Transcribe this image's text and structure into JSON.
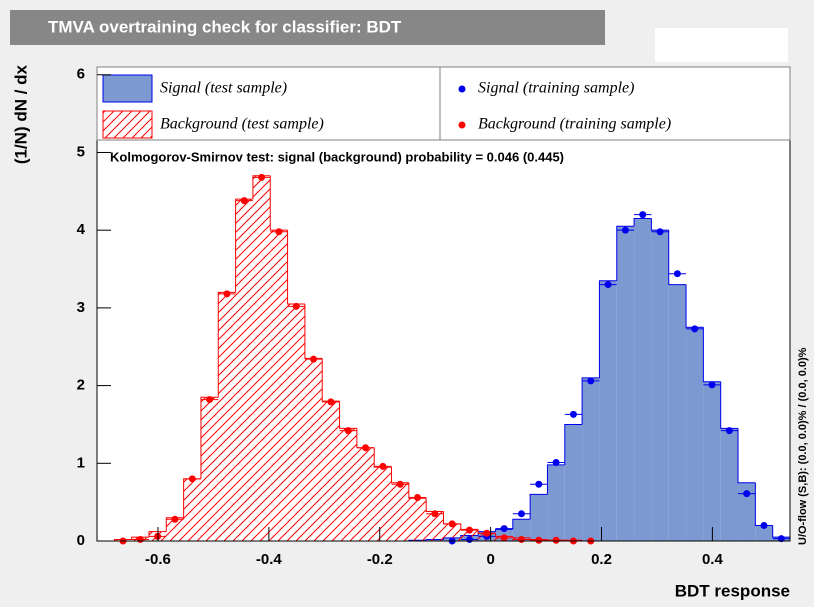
{
  "chart_data": {
    "type": "histogram",
    "title": "TMVA overtraining check for classifier: BDT",
    "xlabel": "BDT response",
    "ylabel": "(1/N) dN / dx",
    "annotation": "Kolmogorov-Smirnov test: signal (background) probability = 0.046 (0.445)",
    "side_note": "U/O-flow (S,B): (0.0, 0.0)% / (0.0, 0.0)%",
    "bins": [
      -0.71,
      -0.67875,
      -0.6475,
      -0.61625,
      -0.585,
      -0.55375,
      -0.5225,
      -0.49125,
      -0.46,
      -0.42875,
      -0.3975,
      -0.36625,
      -0.335,
      -0.30375,
      -0.2725,
      -0.24125,
      -0.21,
      -0.17875,
      -0.1475,
      -0.11625,
      -0.085,
      -0.05375,
      -0.0225,
      0.00875,
      0.04,
      0.07125,
      0.1025,
      0.13375,
      0.165,
      0.19625,
      0.2275,
      0.25875,
      0.29,
      0.32125,
      0.3525,
      0.38375,
      0.415,
      0.44625,
      0.4775,
      0.50875,
      0.54
    ],
    "xlim": [
      -0.71,
      0.54
    ],
    "ylim": [
      0,
      6.1
    ],
    "xticks": [
      -0.6,
      -0.4,
      -0.2,
      0,
      0.2,
      0.4
    ],
    "yticks": [
      0,
      1,
      2,
      3,
      4,
      5,
      6
    ],
    "grid": false,
    "series": [
      {
        "name": "Signal (test sample)",
        "color": "#0000ee",
        "fill": "#7d99d1",
        "style": "filled",
        "values": [
          0,
          0,
          0,
          0,
          0,
          0,
          0,
          0,
          0,
          0,
          0,
          0,
          0,
          0,
          0,
          0,
          0,
          0,
          0.01,
          0.02,
          0.04,
          0.07,
          0.12,
          0.15,
          0.28,
          0.6,
          0.98,
          1.5,
          2.1,
          3.35,
          4.05,
          4.15,
          4.0,
          3.3,
          2.75,
          2.05,
          1.45,
          0.75,
          0.2,
          0.05
        ]
      },
      {
        "name": "Background (test sample)",
        "color": "#ff0000",
        "style": "hatched",
        "values": [
          0,
          0.02,
          0.05,
          0.12,
          0.3,
          0.8,
          1.85,
          3.2,
          4.4,
          4.7,
          4.0,
          3.05,
          2.35,
          1.8,
          1.45,
          1.2,
          0.95,
          0.75,
          0.55,
          0.38,
          0.22,
          0.15,
          0.1,
          0.06,
          0.04,
          0.02,
          0.01,
          0.01,
          0,
          0,
          0,
          0,
          0,
          0,
          0,
          0,
          0,
          0,
          0,
          0
        ]
      },
      {
        "name": "Signal (training sample)",
        "color": "#0000ee",
        "style": "points",
        "values": [
          null,
          null,
          null,
          null,
          null,
          null,
          null,
          null,
          null,
          null,
          null,
          null,
          null,
          null,
          null,
          null,
          null,
          null,
          null,
          null,
          0,
          0.02,
          0.06,
          0.16,
          0.35,
          0.73,
          1.01,
          1.63,
          2.06,
          3.3,
          4.0,
          4.2,
          3.98,
          3.44,
          2.73,
          2.01,
          1.42,
          0.61,
          0.2,
          0.03
        ]
      },
      {
        "name": "Background (training sample)",
        "color": "#ff0000",
        "style": "points",
        "values": [
          null,
          0,
          0.02,
          0.06,
          0.28,
          0.8,
          1.82,
          3.18,
          4.38,
          4.68,
          3.98,
          3.02,
          2.34,
          1.79,
          1.42,
          1.2,
          0.96,
          0.73,
          0.56,
          0.35,
          0.22,
          0.14,
          0.1,
          0.04,
          0.02,
          0.01,
          0.01,
          0,
          0,
          null,
          null,
          null,
          null,
          null,
          null,
          null,
          null,
          null,
          null,
          null
        ]
      }
    ]
  }
}
